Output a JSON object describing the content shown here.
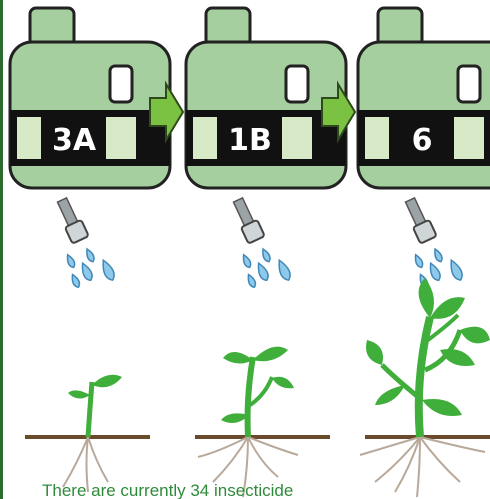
{
  "jugs": [
    {
      "label": "3A"
    },
    {
      "label": "1B"
    },
    {
      "label": "6"
    }
  ],
  "caption": "There are currently 34 insecticide"
}
